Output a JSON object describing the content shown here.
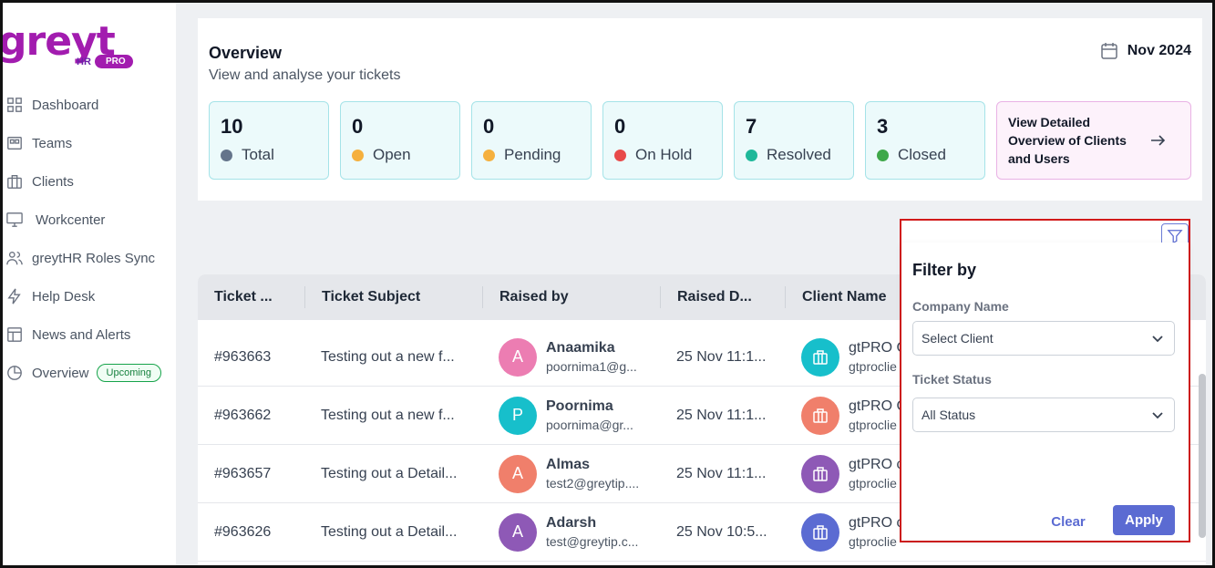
{
  "logo": {
    "text": "greyt",
    "hr": "HR",
    "pro": "PRO"
  },
  "sidebar": {
    "items": [
      {
        "label": "Dashboard",
        "icon": "grid-icon"
      },
      {
        "label": "Teams",
        "icon": "teams-icon"
      },
      {
        "label": "Clients",
        "icon": "briefcase-icon"
      },
      {
        "label": "Workcenter",
        "icon": "monitor-icon"
      },
      {
        "label": "greytHR Roles Sync",
        "icon": "users-icon"
      },
      {
        "label": "Help Desk",
        "icon": "bolt-icon"
      },
      {
        "label": "News and Alerts",
        "icon": "news-icon"
      },
      {
        "label": "Overview",
        "icon": "pie-icon",
        "badge": "Upcoming"
      }
    ]
  },
  "overview": {
    "title": "Overview",
    "subtitle": "View and analyse your tickets",
    "month": "Nov 2024",
    "stats": [
      {
        "value": "10",
        "label": "Total",
        "color": "#64748b"
      },
      {
        "value": "0",
        "label": "Open",
        "color": "#f5b03e"
      },
      {
        "value": "0",
        "label": "Pending",
        "color": "#f5b03e"
      },
      {
        "value": "0",
        "label": "On Hold",
        "color": "#e84a4a"
      },
      {
        "value": "7",
        "label": "Resolved",
        "color": "#1fb89a"
      },
      {
        "value": "3",
        "label": "Closed",
        "color": "#3fa84a"
      }
    ],
    "detail_link": "View Detailed Overview of Clients and Users"
  },
  "table": {
    "headers": [
      "Ticket ...",
      "Ticket Subject",
      "Raised by",
      "Raised D...",
      "Client Name"
    ],
    "rows": [
      {
        "id": "#963663",
        "subject": "Testing out a new f...",
        "initial": "A",
        "avatar_color": "#ec7db2",
        "name": "Anaamika",
        "email": "poornima1@g...",
        "date": "25 Nov 11:1...",
        "client_color": "#17bfcb",
        "client": "gtPRO C",
        "client_email": "gtproclie"
      },
      {
        "id": "#963662",
        "subject": "Testing out a new f...",
        "initial": "P",
        "avatar_color": "#17bfcb",
        "name": "Poornima",
        "email": "poornima@gr...",
        "date": "25 Nov 11:1...",
        "client_color": "#f07f6b",
        "client": "gtPRO C",
        "client_email": "gtproclie"
      },
      {
        "id": "#963657",
        "subject": "Testing out a Detail...",
        "initial": "A",
        "avatar_color": "#f07f6b",
        "name": "Almas",
        "email": "test2@greytip....",
        "date": "25 Nov 11:1...",
        "client_color": "#8e59b6",
        "client": "gtPRO c",
        "client_email": "gtproclie"
      },
      {
        "id": "#963626",
        "subject": "Testing out a Detail...",
        "initial": "A",
        "avatar_color": "#8e59b6",
        "name": "Adarsh",
        "email": "test@greytip.c...",
        "date": "25 Nov 10:5...",
        "client_color": "#5b6bd2",
        "client": "gtPRO c",
        "client_email": "gtproclie"
      }
    ]
  },
  "filter": {
    "title": "Filter by",
    "company_label": "Company Name",
    "company_value": "Select Client",
    "status_label": "Ticket Status",
    "status_value": "All Status",
    "clear": "Clear",
    "apply": "Apply"
  }
}
